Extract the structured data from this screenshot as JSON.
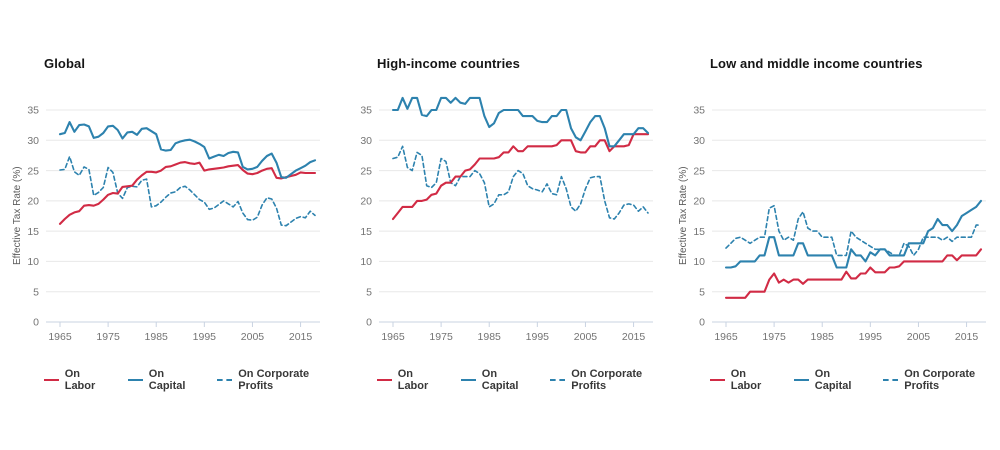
{
  "page": {
    "background": "#ffffff"
  },
  "axis": {
    "y_ticks": [
      0,
      5,
      10,
      15,
      20,
      25,
      30,
      35
    ],
    "x_ticks": [
      1965,
      1975,
      1985,
      1995,
      2005,
      2015
    ],
    "tick_label_color": "#747474",
    "grid_color": "#e8e8e8",
    "axis_line_color": "#c9d3e2"
  },
  "colors": {
    "labor_red": "#d12b45",
    "capital_blue": "#2d82ae"
  },
  "legend": {
    "items": [
      {
        "label": "On Labor",
        "color": "#d12b45",
        "style": "solid"
      },
      {
        "label": "On Capital",
        "color": "#2d82ae",
        "style": "solid"
      },
      {
        "label": "On Corporate Profits",
        "color": "#2d82ae",
        "style": "dashed"
      }
    ]
  },
  "chart_data": [
    {
      "type": "line",
      "title": "Global",
      "ylabel": "Effective Tax Rate (%)",
      "x_start": 1965,
      "x_step": 1,
      "ylim": [
        0,
        37.5
      ],
      "grid": true,
      "legend_position": "bottom",
      "series": [
        {
          "name": "On Labor",
          "color": "#d12b45",
          "dash": false,
          "values": [
            16.2,
            17.0,
            17.7,
            18.1,
            18.3,
            19.2,
            19.3,
            19.2,
            19.5,
            20.2,
            21.0,
            21.3,
            21.2,
            22.3,
            22.4,
            22.5,
            23.5,
            24.2,
            24.8,
            24.8,
            24.7,
            25.0,
            25.6,
            25.7,
            26.0,
            26.3,
            26.4,
            26.2,
            26.1,
            26.3,
            25.0,
            25.2,
            25.3,
            25.4,
            25.5,
            25.7,
            25.8,
            25.9,
            25.1,
            24.5,
            24.4,
            24.6,
            25.0,
            25.3,
            25.4,
            23.8,
            23.7,
            23.9,
            24.1,
            24.3,
            24.7,
            24.6,
            24.6,
            24.6
          ]
        },
        {
          "name": "On Capital",
          "color": "#2d82ae",
          "dash": false,
          "values": [
            31.0,
            31.2,
            33.0,
            31.4,
            32.5,
            32.6,
            32.3,
            30.4,
            30.6,
            31.2,
            32.3,
            32.4,
            31.7,
            30.3,
            31.3,
            31.4,
            30.9,
            31.9,
            32.0,
            31.5,
            31.0,
            28.5,
            28.3,
            28.4,
            29.5,
            29.8,
            30.0,
            30.1,
            29.8,
            29.4,
            28.9,
            27.0,
            27.3,
            27.6,
            27.4,
            27.9,
            28.1,
            28.0,
            25.6,
            25.2,
            25.3,
            25.6,
            26.6,
            27.4,
            27.8,
            26.3,
            23.9,
            23.8,
            24.4,
            25.0,
            25.4,
            25.8,
            26.4,
            26.7
          ]
        },
        {
          "name": "On Corporate Profits",
          "color": "#2d82ae",
          "dash": true,
          "values": [
            25.1,
            25.2,
            27.3,
            24.8,
            24.2,
            25.6,
            25.2,
            20.9,
            21.4,
            22.2,
            25.5,
            24.7,
            21.3,
            20.4,
            22.2,
            22.4,
            22.3,
            23.4,
            23.6,
            19.0,
            19.2,
            19.8,
            20.6,
            21.3,
            21.5,
            22.2,
            22.4,
            21.8,
            21.0,
            20.2,
            19.8,
            18.6,
            18.8,
            19.4,
            20.0,
            19.5,
            19.0,
            19.9,
            18.0,
            16.9,
            16.8,
            17.3,
            19.3,
            20.5,
            20.3,
            18.8,
            16.0,
            15.9,
            16.5,
            17.1,
            17.4,
            17.2,
            18.3,
            17.6
          ]
        }
      ]
    },
    {
      "type": "line",
      "title": "High-income countries",
      "ylabel": "",
      "x_start": 1965,
      "x_step": 1,
      "ylim": [
        0,
        37.5
      ],
      "grid": true,
      "legend_position": "bottom",
      "series": [
        {
          "name": "On Labor",
          "color": "#d12b45",
          "dash": false,
          "values": [
            17.0,
            18.0,
            19.0,
            19.0,
            19.0,
            20.0,
            20.0,
            20.2,
            21.0,
            21.2,
            22.5,
            23.0,
            23.0,
            24.0,
            24.0,
            25.0,
            25.2,
            26.0,
            27.0,
            27.0,
            27.0,
            27.0,
            27.2,
            28.0,
            28.0,
            29.0,
            28.2,
            28.2,
            29.0,
            29.0,
            29.0,
            29.0,
            29.0,
            29.0,
            29.2,
            30.0,
            30.0,
            30.0,
            28.2,
            28.0,
            28.0,
            29.0,
            29.0,
            30.0,
            30.0,
            28.2,
            29.0,
            29.0,
            29.0,
            29.2,
            31.0,
            31.0,
            31.0,
            31.0
          ]
        },
        {
          "name": "On Capital",
          "color": "#2d82ae",
          "dash": false,
          "values": [
            35.0,
            35.0,
            37.0,
            35.2,
            37.0,
            37.0,
            34.2,
            34.0,
            35.0,
            35.0,
            37.0,
            37.0,
            36.2,
            37.0,
            36.2,
            36.0,
            37.0,
            37.0,
            37.0,
            34.0,
            32.2,
            32.8,
            34.5,
            35.0,
            35.0,
            35.0,
            35.0,
            34.0,
            34.0,
            34.0,
            33.2,
            33.0,
            33.0,
            34.0,
            34.0,
            35.0,
            35.0,
            32.0,
            30.5,
            30.0,
            31.5,
            33.0,
            34.0,
            34.0,
            32.0,
            29.0,
            29.0,
            30.0,
            31.0,
            31.0,
            31.0,
            32.0,
            32.0,
            31.2
          ]
        },
        {
          "name": "On Corporate Profits",
          "color": "#2d82ae",
          "dash": true,
          "values": [
            27.0,
            27.2,
            29.0,
            25.5,
            25.0,
            28.0,
            27.5,
            22.5,
            22.2,
            23.0,
            27.0,
            26.5,
            23.0,
            22.5,
            24.0,
            24.0,
            24.0,
            25.0,
            24.5,
            23.0,
            19.0,
            19.5,
            21.0,
            21.0,
            21.5,
            24.0,
            25.0,
            24.5,
            22.5,
            22.0,
            21.8,
            21.5,
            22.8,
            21.2,
            21.0,
            24.0,
            22.0,
            19.0,
            18.3,
            19.5,
            22.0,
            23.8,
            24.0,
            24.0,
            20.0,
            17.2,
            17.0,
            18.0,
            19.3,
            19.5,
            19.3,
            18.3,
            19.0,
            18.0
          ]
        }
      ]
    },
    {
      "type": "line",
      "title": "Low and middle income countries",
      "ylabel": "Effective Tax Rate (%)",
      "x_start": 1965,
      "x_step": 1,
      "ylim": [
        0,
        37.5
      ],
      "grid": true,
      "legend_position": "bottom",
      "series": [
        {
          "name": "On Labor",
          "color": "#d12b45",
          "dash": false,
          "values": [
            4.0,
            4.0,
            4.0,
            4.0,
            4.0,
            5.0,
            5.0,
            5.0,
            5.0,
            7.0,
            8.0,
            6.5,
            7.0,
            6.5,
            7.0,
            7.0,
            6.3,
            7.0,
            7.0,
            7.0,
            7.0,
            7.0,
            7.0,
            7.0,
            7.0,
            8.3,
            7.2,
            7.2,
            8.0,
            8.0,
            9.0,
            8.2,
            8.2,
            8.2,
            9.0,
            9.0,
            9.2,
            10.0,
            10.0,
            10.0,
            10.0,
            10.0,
            10.0,
            10.0,
            10.0,
            10.0,
            11.0,
            11.0,
            10.2,
            11.0,
            11.0,
            11.0,
            11.0,
            12.0
          ]
        },
        {
          "name": "On Capital",
          "color": "#2d82ae",
          "dash": false,
          "values": [
            9.0,
            9.0,
            9.2,
            10.0,
            10.0,
            10.0,
            10.0,
            11.0,
            11.0,
            14.0,
            14.0,
            11.0,
            11.0,
            11.0,
            11.0,
            13.0,
            13.0,
            11.0,
            11.0,
            11.0,
            11.0,
            11.0,
            11.0,
            9.0,
            9.0,
            9.0,
            12.0,
            11.0,
            11.0,
            10.0,
            11.5,
            11.0,
            12.0,
            12.0,
            11.0,
            11.0,
            11.0,
            11.0,
            13.0,
            13.0,
            13.0,
            13.0,
            15.0,
            15.5,
            17.0,
            16.0,
            16.0,
            15.0,
            16.0,
            17.5,
            18.0,
            18.5,
            19.0,
            20.0
          ]
        },
        {
          "name": "On Corporate Profits",
          "color": "#2d82ae",
          "dash": true,
          "values": [
            12.2,
            13.0,
            13.8,
            14.0,
            13.5,
            13.0,
            13.5,
            14.0,
            14.0,
            18.8,
            19.2,
            15.0,
            13.5,
            14.0,
            13.5,
            17.0,
            18.2,
            15.5,
            15.0,
            15.0,
            14.0,
            14.0,
            14.0,
            11.0,
            11.0,
            11.0,
            15.0,
            14.0,
            13.5,
            13.0,
            12.5,
            12.0,
            12.0,
            12.0,
            11.5,
            11.0,
            11.0,
            13.0,
            12.5,
            11.0,
            12.0,
            14.0,
            14.0,
            14.0,
            14.0,
            13.5,
            14.0,
            13.3,
            14.0,
            14.0,
            14.0,
            14.0,
            16.0,
            16.0
          ]
        }
      ]
    }
  ]
}
